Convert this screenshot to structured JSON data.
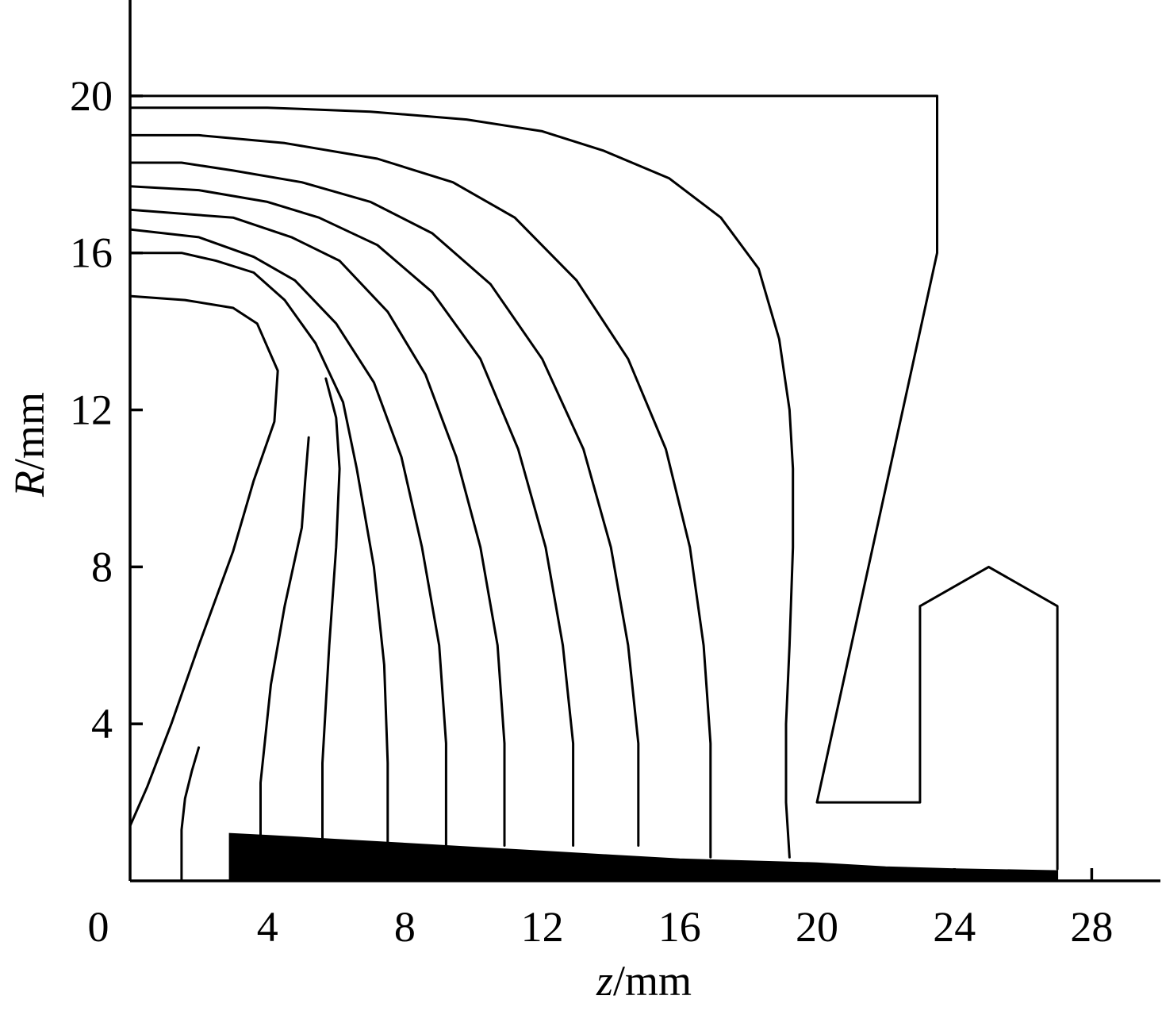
{
  "chart_data": {
    "type": "line",
    "title": "",
    "xlabel": {
      "var": "z",
      "unit": "/mm"
    },
    "ylabel": {
      "var": "R",
      "unit": "/mm"
    },
    "xlim": [
      0,
      30
    ],
    "ylim": [
      0,
      22
    ],
    "xticks": [
      0,
      4,
      8,
      12,
      16,
      20,
      24,
      28
    ],
    "yticks": [
      4,
      8,
      12,
      16,
      20
    ],
    "grid": false,
    "legend": "none",
    "colors": {
      "line": "#000000",
      "fill": "#000000",
      "background": "#ffffff"
    },
    "electrodes": [
      {
        "points": [
          [
            0,
            20
          ],
          [
            23.5,
            20
          ],
          [
            23.5,
            16
          ],
          [
            20,
            2
          ],
          [
            23,
            2
          ],
          [
            23,
            7
          ],
          [
            25,
            8
          ],
          [
            27,
            7
          ],
          [
            27,
            0.3
          ]
        ]
      }
    ],
    "cathode": {
      "points": [
        [
          2.9,
          0
        ],
        [
          2.9,
          1.2
        ],
        [
          4,
          1.15
        ],
        [
          6,
          1.05
        ],
        [
          8,
          0.95
        ],
        [
          10,
          0.85
        ],
        [
          12,
          0.75
        ],
        [
          14,
          0.65
        ],
        [
          16,
          0.55
        ],
        [
          18,
          0.5
        ],
        [
          20,
          0.45
        ],
        [
          22,
          0.35
        ],
        [
          24,
          0.3
        ],
        [
          27,
          0.25
        ],
        [
          27,
          0
        ]
      ]
    },
    "series": [
      {
        "points": [
          [
            0,
            1.4
          ],
          [
            0.5,
            2.4
          ],
          [
            1.2,
            4
          ],
          [
            2,
            6
          ],
          [
            3,
            8.4
          ],
          [
            3.6,
            10.2
          ],
          [
            4.2,
            11.7
          ],
          [
            4.3,
            13
          ],
          [
            3.7,
            14.2
          ],
          [
            3,
            14.6
          ],
          [
            1.6,
            14.8
          ],
          [
            0,
            14.9
          ]
        ]
      },
      {
        "points": [
          [
            1.5,
            0
          ],
          [
            1.5,
            1.3
          ],
          [
            1.6,
            2.1
          ],
          [
            1.8,
            2.8
          ],
          [
            2,
            3.4
          ]
        ]
      },
      {
        "points": [
          [
            3.8,
            0.9
          ],
          [
            3.8,
            2.5
          ],
          [
            4.1,
            5
          ],
          [
            4.5,
            7
          ],
          [
            5,
            9
          ],
          [
            5.1,
            10.2
          ],
          [
            5.2,
            11.3
          ]
        ]
      },
      {
        "points": [
          [
            5.6,
            0.9
          ],
          [
            5.6,
            3
          ],
          [
            5.8,
            6
          ],
          [
            6,
            8.5
          ],
          [
            6.1,
            10.5
          ],
          [
            6,
            11.8
          ],
          [
            5.7,
            12.8
          ]
        ]
      },
      {
        "points": [
          [
            7.5,
            0.9
          ],
          [
            7.5,
            3
          ],
          [
            7.4,
            5.5
          ],
          [
            7.1,
            8
          ],
          [
            6.6,
            10.5
          ],
          [
            6.2,
            12.2
          ],
          [
            5.4,
            13.7
          ],
          [
            4.5,
            14.8
          ],
          [
            3.6,
            15.5
          ],
          [
            2.5,
            15.8
          ],
          [
            1.5,
            16
          ],
          [
            0,
            16
          ]
        ]
      },
      {
        "points": [
          [
            9.2,
            0.9
          ],
          [
            9.2,
            3.5
          ],
          [
            9,
            6
          ],
          [
            8.5,
            8.5
          ],
          [
            7.9,
            10.8
          ],
          [
            7.1,
            12.7
          ],
          [
            6,
            14.2
          ],
          [
            4.8,
            15.3
          ],
          [
            3.6,
            15.9
          ],
          [
            2,
            16.4
          ],
          [
            0,
            16.6
          ]
        ]
      },
      {
        "points": [
          [
            10.9,
            0.9
          ],
          [
            10.9,
            3.5
          ],
          [
            10.7,
            6
          ],
          [
            10.2,
            8.5
          ],
          [
            9.5,
            10.8
          ],
          [
            8.6,
            12.9
          ],
          [
            7.5,
            14.5
          ],
          [
            6.1,
            15.8
          ],
          [
            4.7,
            16.4
          ],
          [
            3,
            16.9
          ],
          [
            1.5,
            17
          ],
          [
            0,
            17.1
          ]
        ]
      },
      {
        "points": [
          [
            12.9,
            0.9
          ],
          [
            12.9,
            3.5
          ],
          [
            12.6,
            6
          ],
          [
            12.1,
            8.5
          ],
          [
            11.3,
            11
          ],
          [
            10.2,
            13.3
          ],
          [
            8.8,
            15
          ],
          [
            7.2,
            16.2
          ],
          [
            5.5,
            16.9
          ],
          [
            4,
            17.3
          ],
          [
            2,
            17.6
          ],
          [
            0,
            17.7
          ]
        ]
      },
      {
        "points": [
          [
            14.8,
            0.9
          ],
          [
            14.8,
            3.5
          ],
          [
            14.5,
            6
          ],
          [
            14,
            8.5
          ],
          [
            13.2,
            11
          ],
          [
            12,
            13.3
          ],
          [
            10.5,
            15.2
          ],
          [
            8.8,
            16.5
          ],
          [
            7,
            17.3
          ],
          [
            5,
            17.8
          ],
          [
            3,
            18.1
          ],
          [
            1.5,
            18.3
          ],
          [
            0,
            18.3
          ]
        ]
      },
      {
        "points": [
          [
            16.9,
            0.6
          ],
          [
            16.9,
            3.5
          ],
          [
            16.7,
            6
          ],
          [
            16.3,
            8.5
          ],
          [
            15.6,
            11
          ],
          [
            14.5,
            13.3
          ],
          [
            13,
            15.3
          ],
          [
            11.2,
            16.9
          ],
          [
            9.4,
            17.8
          ],
          [
            7.2,
            18.4
          ],
          [
            4.5,
            18.8
          ],
          [
            2,
            19
          ],
          [
            0,
            19
          ]
        ]
      },
      {
        "points": [
          [
            19.2,
            0.6
          ],
          [
            19.1,
            2
          ],
          [
            19.1,
            4
          ],
          [
            19.2,
            6
          ],
          [
            19.3,
            8.5
          ],
          [
            19.3,
            10.5
          ],
          [
            19.2,
            12
          ],
          [
            18.9,
            13.8
          ],
          [
            18.3,
            15.6
          ],
          [
            17.2,
            16.9
          ],
          [
            15.7,
            17.9
          ],
          [
            13.8,
            18.6
          ],
          [
            12,
            19.1
          ],
          [
            9.8,
            19.4
          ],
          [
            7,
            19.6
          ],
          [
            4,
            19.7
          ],
          [
            0,
            19.7
          ]
        ]
      }
    ]
  }
}
